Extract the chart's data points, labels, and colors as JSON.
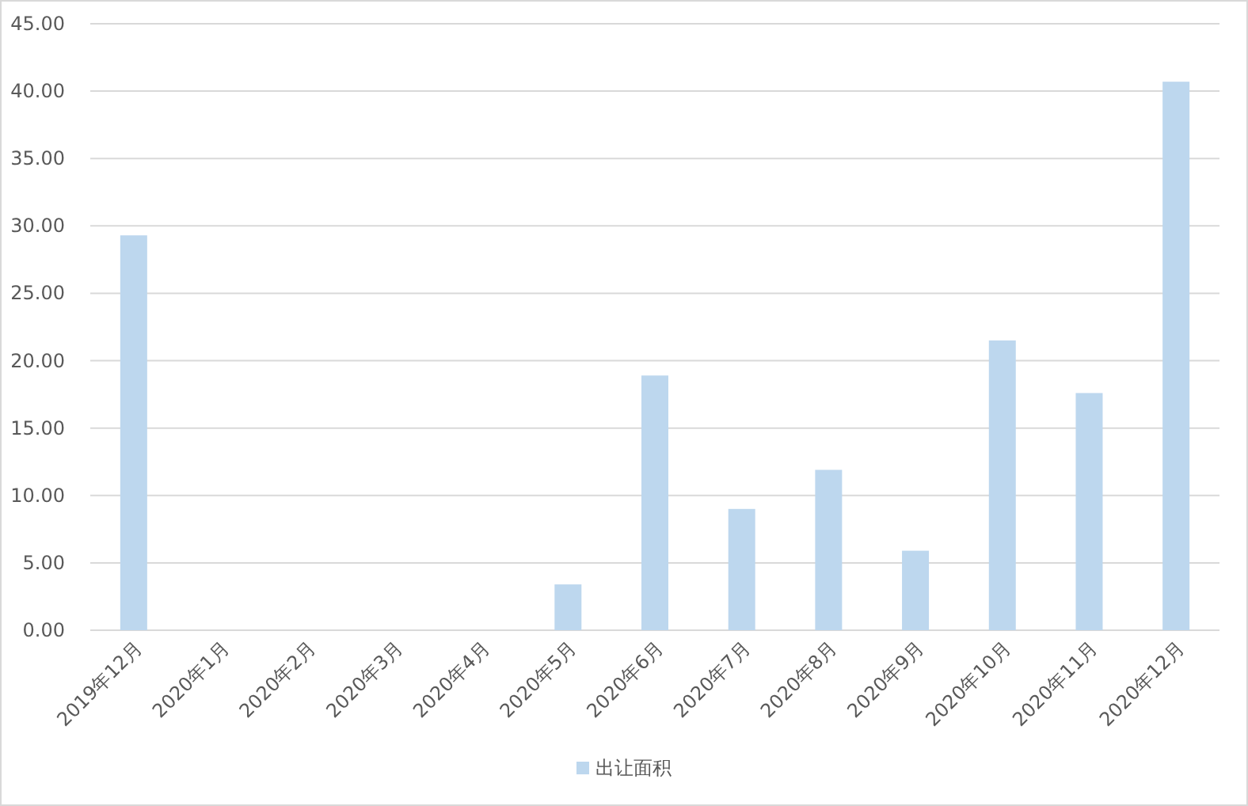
{
  "chart_data": {
    "type": "bar",
    "categories": [
      "2019年12月",
      "2020年1月",
      "2020年2月",
      "2020年3月",
      "2020年4月",
      "2020年5月",
      "2020年6月",
      "2020年7月",
      "2020年8月",
      "2020年9月",
      "2020年10月",
      "2020年11月",
      "2020年12月"
    ],
    "series": [
      {
        "name": "出让面积",
        "color": "#bdd7ee",
        "values": [
          29.3,
          0,
          0,
          0,
          0,
          3.4,
          18.9,
          9.0,
          11.9,
          5.9,
          21.5,
          17.6,
          40.7
        ]
      }
    ],
    "ylim": [
      0,
      45
    ],
    "yticks": [
      {
        "value": 0,
        "label": "0.00"
      },
      {
        "value": 5,
        "label": "5.00"
      },
      {
        "value": 10,
        "label": "10.00"
      },
      {
        "value": 15,
        "label": "15.00"
      },
      {
        "value": 20,
        "label": "20.00"
      },
      {
        "value": 25,
        "label": "25.00"
      },
      {
        "value": 30,
        "label": "30.00"
      },
      {
        "value": 35,
        "label": "35.00"
      },
      {
        "value": 40,
        "label": "40.00"
      },
      {
        "value": 45,
        "label": "45.00"
      }
    ],
    "grid": "y",
    "legend": "bottom"
  }
}
